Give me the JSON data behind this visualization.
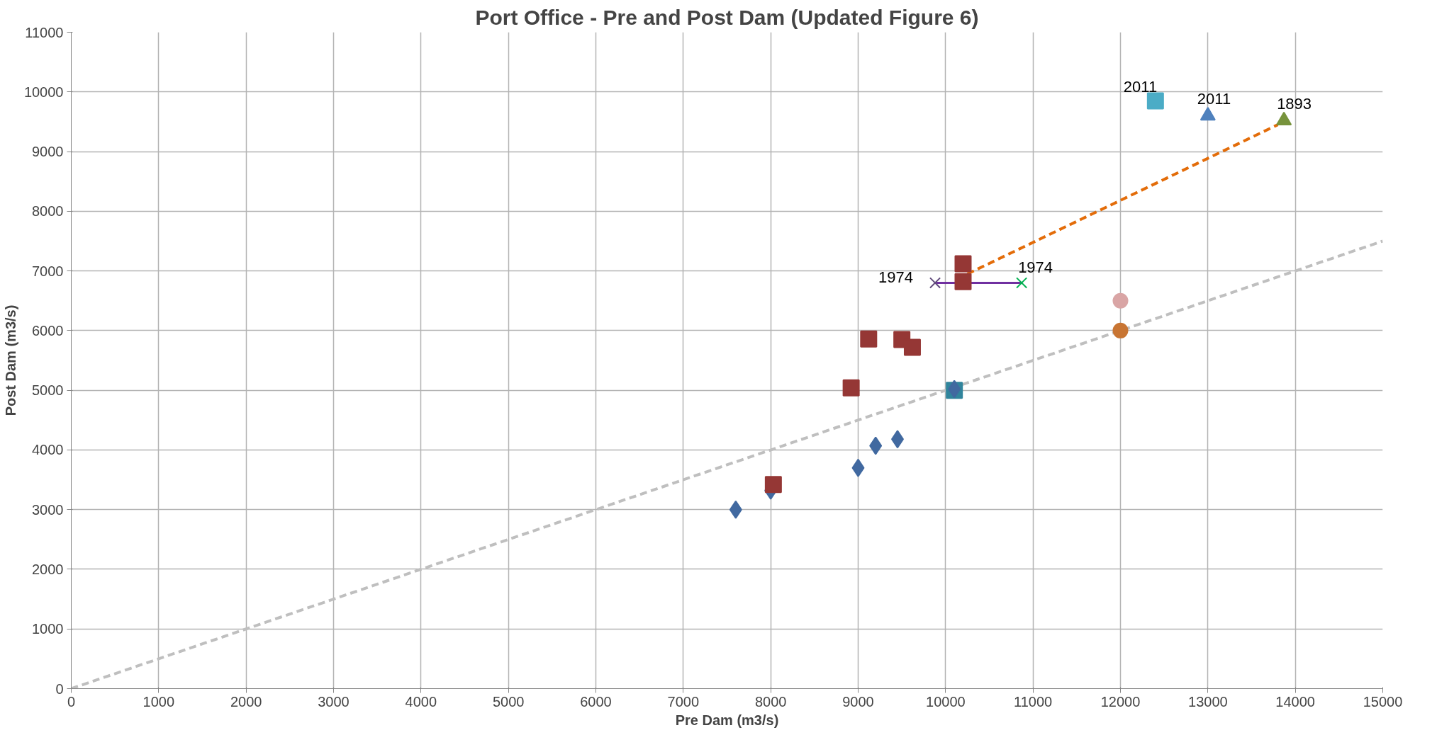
{
  "chart_data": {
    "type": "scatter",
    "title": "Port Office - Pre and Post Dam (Updated Figure 6)",
    "xlabel": "Pre Dam (m3/s)",
    "ylabel": "Post Dam (m3/s)",
    "xlim": [
      0,
      15000
    ],
    "ylim": [
      0,
      11000
    ],
    "xticks": [
      0,
      1000,
      2000,
      3000,
      4000,
      5000,
      6000,
      7000,
      8000,
      9000,
      10000,
      11000,
      12000,
      13000,
      14000,
      15000
    ],
    "yticks": [
      0,
      1000,
      2000,
      3000,
      4000,
      5000,
      6000,
      7000,
      8000,
      9000,
      10000,
      11000
    ],
    "grid": true,
    "series": [
      {
        "type": "line",
        "color": "#bfbfbf",
        "line_style": "dashed",
        "marker": "none",
        "x": [
          0,
          15000
        ],
        "values": [
          0,
          7500
        ]
      },
      {
        "type": "line",
        "color": "#e36c09",
        "line_style": "dashed",
        "marker": "none",
        "x": [
          10250,
          13800
        ],
        "values": [
          6950,
          9450
        ]
      },
      {
        "type": "line",
        "color": "#7030a0",
        "line_style": "solid",
        "marker": "none",
        "x": [
          9880,
          10870
        ],
        "values": [
          6800,
          6800
        ]
      },
      {
        "color": "#31859c",
        "marker": "square",
        "x": [
          10100
        ],
        "values": [
          5000
        ]
      },
      {
        "color": "#4169a0",
        "marker": "diamond",
        "x": [
          7600,
          8000,
          9000,
          9200,
          9450,
          10100
        ],
        "values": [
          3000,
          3320,
          3700,
          4070,
          4180,
          5020
        ]
      },
      {
        "color": "#953735",
        "marker": "square",
        "x": [
          8030,
          8920,
          9120,
          9500,
          9620,
          10200,
          10200
        ],
        "values": [
          3420,
          5040,
          5860,
          5850,
          5720,
          7120,
          6820
        ]
      },
      {
        "color": "#d9a5a5",
        "marker": "circle",
        "x": [
          12000
        ],
        "values": [
          6500
        ]
      },
      {
        "color": "#c87533",
        "marker": "circle",
        "x": [
          12000
        ],
        "values": [
          6000
        ]
      },
      {
        "color": "#4bacc6",
        "marker": "square",
        "x": [
          12400
        ],
        "values": [
          9850
        ]
      },
      {
        "color": "#4f81bd",
        "marker": "triangle",
        "x": [
          13000
        ],
        "values": [
          9600
        ]
      },
      {
        "color": "#77933c",
        "marker": "triangle",
        "x": [
          13870
        ],
        "values": [
          9520
        ]
      },
      {
        "color": "#604a7b",
        "marker": "cross",
        "x": [
          9880
        ],
        "values": [
          6800
        ]
      },
      {
        "color": "#00b050",
        "marker": "cross",
        "x": [
          10870
        ],
        "values": [
          6800
        ]
      }
    ],
    "annotations": [
      {
        "text": "2011",
        "x": 12400,
        "y": 9850
      },
      {
        "text": "2011",
        "x": 13000,
        "y": 9600
      },
      {
        "text": "1893",
        "x": 13870,
        "y": 9520
      },
      {
        "text": "1974",
        "x": 9880,
        "y": 6800
      },
      {
        "text": "1974",
        "x": 10870,
        "y": 6800
      }
    ]
  }
}
